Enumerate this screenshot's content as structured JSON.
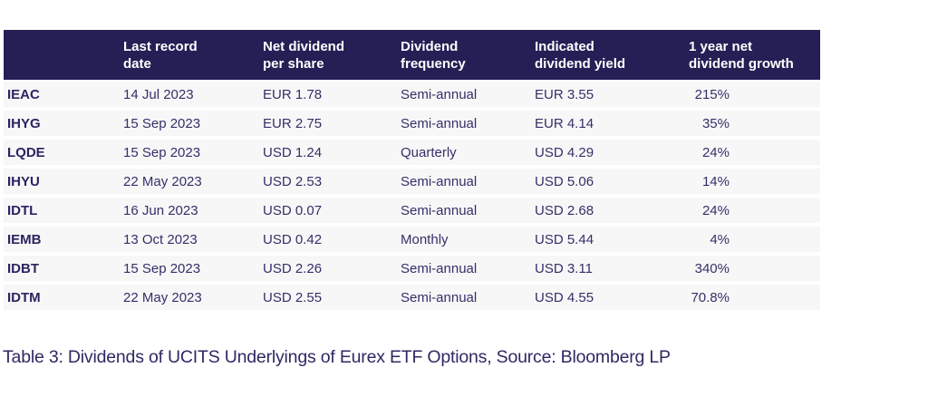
{
  "table": {
    "columns": [
      "",
      "Last record\ndate",
      "Net dividend\nper share",
      "Dividend\nfrequency",
      "Indicated\ndividend yield",
      "1 year net\ndividend growth"
    ],
    "fields": [
      "ticker",
      "last_record_date",
      "net_dividend_per_share",
      "dividend_frequency",
      "indicated_dividend_yield",
      "one_year_net_dividend_growth"
    ],
    "rows": [
      {
        "ticker": "IEAC",
        "last_record_date": "14 Jul 2023",
        "net_dividend_per_share": "EUR 1.78",
        "dividend_frequency": "Semi-annual",
        "indicated_dividend_yield": "EUR 3.55",
        "one_year_net_dividend_growth": "215%"
      },
      {
        "ticker": "IHYG",
        "last_record_date": "15 Sep 2023",
        "net_dividend_per_share": "EUR 2.75",
        "dividend_frequency": "Semi-annual",
        "indicated_dividend_yield": "EUR 4.14",
        "one_year_net_dividend_growth": "35%"
      },
      {
        "ticker": "LQDE",
        "last_record_date": "15 Sep 2023",
        "net_dividend_per_share": "USD 1.24",
        "dividend_frequency": "Quarterly",
        "indicated_dividend_yield": "USD 4.29",
        "one_year_net_dividend_growth": "24%"
      },
      {
        "ticker": "IHYU",
        "last_record_date": "22 May 2023",
        "net_dividend_per_share": "USD 2.53",
        "dividend_frequency": "Semi-annual",
        "indicated_dividend_yield": "USD 5.06",
        "one_year_net_dividend_growth": "14%"
      },
      {
        "ticker": "IDTL",
        "last_record_date": "16 Jun 2023",
        "net_dividend_per_share": "USD 0.07",
        "dividend_frequency": "Semi-annual",
        "indicated_dividend_yield": "USD 2.68",
        "one_year_net_dividend_growth": "24%"
      },
      {
        "ticker": "IEMB",
        "last_record_date": "13 Oct 2023",
        "net_dividend_per_share": "USD 0.42",
        "dividend_frequency": "Monthly",
        "indicated_dividend_yield": "USD 5.44",
        "one_year_net_dividend_growth": "4%"
      },
      {
        "ticker": "IDBT",
        "last_record_date": "15 Sep 2023",
        "net_dividend_per_share": "USD 2.26",
        "dividend_frequency": "Semi-annual",
        "indicated_dividend_yield": "USD 3.11",
        "one_year_net_dividend_growth": "340%"
      },
      {
        "ticker": "IDTM",
        "last_record_date": "22 May 2023",
        "net_dividend_per_share": "USD 2.55",
        "dividend_frequency": "Semi-annual",
        "indicated_dividend_yield": "USD 4.55",
        "one_year_net_dividend_growth": "70.8%"
      }
    ]
  },
  "caption": "Table 3: Dividends of UCITS Underlyings of Eurex ETF Options, Source: Bloomberg LP",
  "colors": {
    "header_background": "#251f55",
    "header_text": "#ffffff",
    "row_background": "#f7f7f8",
    "body_text": "#343067",
    "caption_text": "#2e2963",
    "page_background": "#ffffff"
  }
}
